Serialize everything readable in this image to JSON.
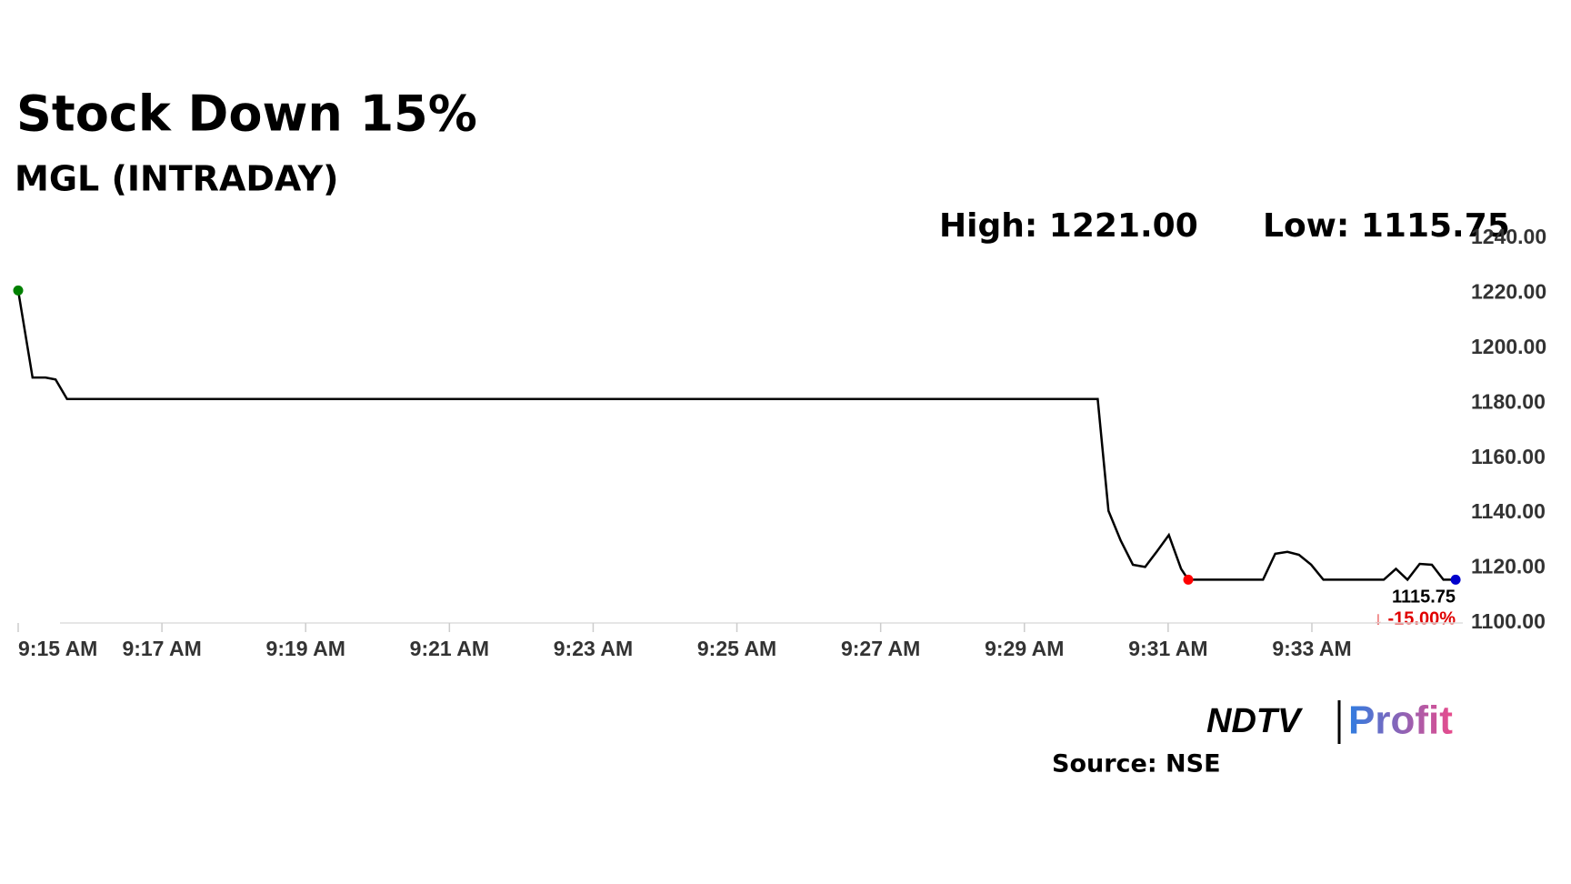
{
  "chart_data": {
    "type": "line",
    "title": "Stock Down 15%",
    "subtitle": "MGL (INTRADAY)",
    "high_label": "High: 1221.00",
    "low_label": "Low: 1115.75",
    "last_value_label": "1115.75",
    "change_label": "↓ -15.00%",
    "source": "Source: NSE",
    "logo": {
      "left": "NDTV",
      "right": "Profit"
    },
    "x": [
      555,
      555.2,
      555.38,
      555.52,
      555.68,
      570.02,
      570.17,
      570.34,
      570.51,
      570.68,
      570.84,
      571.01,
      571.18,
      571.28,
      572.32,
      572.49,
      572.66,
      572.82,
      572.99,
      573.16,
      574.0,
      574.17,
      574.33,
      574.5,
      574.67,
      574.83,
      575.0
    ],
    "series": [
      {
        "name": "MGL",
        "color": "#000000",
        "values": [
          1221.0,
          1189.3,
          1189.3,
          1188.6,
          1181.5,
          1181.5,
          1140.8,
          1130,
          1121.2,
          1120.4,
          1125.9,
          1132,
          1119.7,
          1115.75,
          1115.75,
          1125.2,
          1125.9,
          1124.8,
          1121.2,
          1115.75,
          1115.75,
          1119.7,
          1115.75,
          1121.5,
          1121.2,
          1115.75,
          1115.75
        ]
      }
    ],
    "start_color": "#008000",
    "low_color": "#ff0000",
    "end_color": "#0000cc",
    "xlim": [
      555,
      575.1
    ],
    "xticks": [
      {
        "value": 555,
        "label": "9:15 AM"
      },
      {
        "value": 557,
        "label": "9:17 AM"
      },
      {
        "value": 559,
        "label": "9:19 AM"
      },
      {
        "value": 561,
        "label": "9:21 AM"
      },
      {
        "value": 563,
        "label": "9:23 AM"
      },
      {
        "value": 565,
        "label": "9:25 AM"
      },
      {
        "value": 567,
        "label": "9:27 AM"
      },
      {
        "value": 569,
        "label": "9:29 AM"
      },
      {
        "value": 571,
        "label": "9:31 AM"
      },
      {
        "value": 573,
        "label": "9:33 AM"
      }
    ],
    "ylim": [
      1100,
      1240
    ],
    "yticks": [
      {
        "value": 1100,
        "label": "1100.00"
      },
      {
        "value": 1120,
        "label": "1120.00"
      },
      {
        "value": 1140,
        "label": "1140.00"
      },
      {
        "value": 1160,
        "label": "1160.00"
      },
      {
        "value": 1180,
        "label": "1180.00"
      },
      {
        "value": 1200,
        "label": "1200.00"
      },
      {
        "value": 1220,
        "label": "1220.00"
      },
      {
        "value": 1240,
        "label": "1240.00"
      }
    ]
  }
}
